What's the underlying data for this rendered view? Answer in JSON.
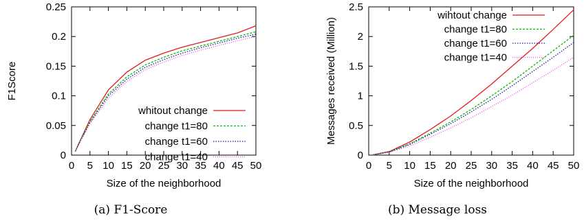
{
  "chart_data": [
    {
      "type": "line",
      "caption": "(a) F1-Score",
      "xlabel": "Size of the neighborhood",
      "ylabel": "F1Score",
      "xlim": [
        0,
        50
      ],
      "ylim": [
        0,
        0.25
      ],
      "xticks": [
        "0",
        "5",
        "10",
        "15",
        "20",
        "25",
        "30",
        "35",
        "40",
        "45",
        "50"
      ],
      "yticks": [
        "0",
        "0.05",
        "0.1",
        "0.15",
        "0.2",
        "0.25"
      ],
      "legend_position": "bottom-right",
      "x": [
        1,
        2,
        5,
        10,
        15,
        20,
        25,
        30,
        35,
        40,
        45,
        50
      ],
      "series": [
        {
          "name": "whitout change",
          "color": "#e41a1c",
          "dash": "",
          "values": [
            0.006,
            0.02,
            0.06,
            0.11,
            0.14,
            0.16,
            0.172,
            0.182,
            0.19,
            0.198,
            0.206,
            0.218
          ]
        },
        {
          "name": "change t1=80",
          "color": "#00bb00",
          "dash": "3,2",
          "values": [
            0.006,
            0.02,
            0.057,
            0.103,
            0.132,
            0.152,
            0.165,
            0.176,
            0.184,
            0.192,
            0.2,
            0.208
          ]
        },
        {
          "name": "change t1=60",
          "color": "#1a1a99",
          "dash": "1.5,2",
          "values": [
            0.006,
            0.019,
            0.055,
            0.1,
            0.128,
            0.148,
            0.161,
            0.172,
            0.181,
            0.189,
            0.197,
            0.204
          ]
        },
        {
          "name": "change t1=40",
          "color": "#ee44ee",
          "dash": "1,2",
          "values": [
            0.006,
            0.018,
            0.053,
            0.096,
            0.124,
            0.144,
            0.157,
            0.168,
            0.177,
            0.185,
            0.193,
            0.2
          ]
        }
      ]
    },
    {
      "type": "line",
      "caption": "(b) Message loss",
      "xlabel": "Size of the neighborhood",
      "ylabel": "Messages received (Million)",
      "xlim": [
        0,
        50
      ],
      "ylim": [
        0,
        2.5
      ],
      "xticks": [
        "0",
        "5",
        "10",
        "15",
        "20",
        "25",
        "30",
        "35",
        "40",
        "45",
        "50"
      ],
      "yticks": [
        "0",
        "0.5",
        "1",
        "1.5",
        "2",
        "2.5"
      ],
      "legend_position": "top-left",
      "x": [
        1,
        5,
        10,
        15,
        20,
        25,
        30,
        35,
        40,
        45,
        50
      ],
      "series": [
        {
          "name": "wihtout change",
          "color": "#e41a1c",
          "dash": "",
          "values": [
            0.005,
            0.06,
            0.22,
            0.43,
            0.66,
            0.92,
            1.2,
            1.5,
            1.8,
            2.12,
            2.45
          ]
        },
        {
          "name": "change t1=80",
          "color": "#00bb00",
          "dash": "3,2",
          "values": [
            0.005,
            0.055,
            0.19,
            0.37,
            0.56,
            0.77,
            1.0,
            1.24,
            1.5,
            1.76,
            2.02
          ]
        },
        {
          "name": "change t1=60",
          "color": "#1a1a99",
          "dash": "1.5,2",
          "values": [
            0.005,
            0.052,
            0.18,
            0.35,
            0.53,
            0.73,
            0.94,
            1.17,
            1.41,
            1.65,
            1.9
          ]
        },
        {
          "name": "change t1=40",
          "color": "#ee44ee",
          "dash": "1,2",
          "values": [
            0.005,
            0.045,
            0.155,
            0.3,
            0.46,
            0.63,
            0.82,
            1.01,
            1.22,
            1.43,
            1.65
          ]
        }
      ]
    }
  ]
}
